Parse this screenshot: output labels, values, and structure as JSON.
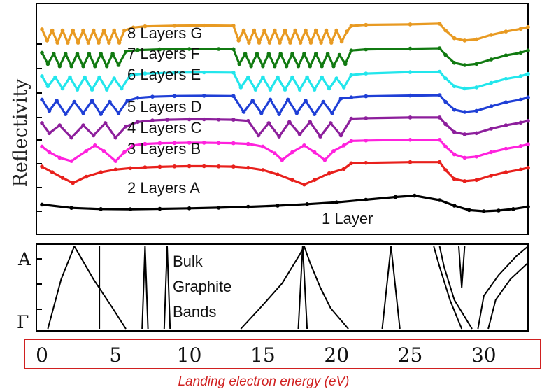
{
  "chart_data": [
    {
      "type": "line",
      "ylabel": "Reflectivity",
      "xlim": [
        0,
        33
      ],
      "x_ticks": [
        0,
        5,
        10,
        15,
        20,
        25,
        30
      ],
      "x_tick_labels": [
        "0",
        "5",
        "10",
        "15",
        "20",
        "25",
        "30"
      ],
      "series": [
        {
          "name": "1 Layer",
          "color": "#000000",
          "offset": 0,
          "x": [
            0,
            2,
            4,
            6,
            8,
            10,
            12,
            14,
            16,
            18,
            20,
            22,
            24,
            25.3,
            27,
            28,
            29,
            30,
            31,
            32,
            33
          ],
          "y": [
            0.3,
            0.15,
            0.1,
            0.09,
            0.11,
            0.13,
            0.16,
            0.2,
            0.25,
            0.32,
            0.4,
            0.52,
            0.64,
            0.7,
            0.5,
            0.25,
            0.05,
            0.0,
            0.03,
            0.1,
            0.2
          ]
        },
        {
          "name": "2 Layers A",
          "color": "#e8201c",
          "offset": 1,
          "x": [
            0,
            0.7,
            1.4,
            2.1,
            3,
            4,
            5,
            6,
            7,
            8,
            9,
            10,
            11,
            12,
            13,
            14,
            15,
            16,
            17,
            17.8,
            18.5,
            19.5,
            20.5,
            21,
            22,
            25,
            27,
            27.4,
            28,
            28.7,
            29.5,
            30.5,
            31.5,
            32.5,
            33
          ],
          "y": [
            0.95,
            0.7,
            0.45,
            0.22,
            0.5,
            0.7,
            0.82,
            0.88,
            0.92,
            0.94,
            0.96,
            0.97,
            0.97,
            0.96,
            0.95,
            0.9,
            0.8,
            0.6,
            0.35,
            0.15,
            0.35,
            0.65,
            0.85,
            1.1,
            1.12,
            1.15,
            1.15,
            0.8,
            0.4,
            0.3,
            0.35,
            0.55,
            0.7,
            0.82,
            0.9
          ]
        },
        {
          "name": "3 Layers B",
          "color": "#ff22dd",
          "offset": 2,
          "x": [
            0,
            0.5,
            1.2,
            2,
            3,
            3.6,
            4.2,
            5,
            5.6,
            6.2,
            7,
            8,
            9,
            10,
            11,
            12,
            13,
            14,
            15,
            15.8,
            16.3,
            17,
            17.8,
            18.5,
            19.2,
            19.8,
            20.5,
            21,
            22,
            25,
            27,
            27.4,
            28,
            28.7,
            29.5,
            30.5,
            31.5,
            32.5,
            33
          ],
          "y": [
            0.8,
            0.55,
            0.3,
            0.15,
            0.6,
            0.85,
            0.6,
            0.15,
            0.55,
            0.85,
            0.92,
            0.95,
            0.96,
            0.97,
            0.97,
            0.96,
            0.95,
            0.92,
            0.8,
            0.5,
            0.2,
            0.55,
            0.85,
            0.55,
            0.2,
            0.6,
            0.85,
            1.05,
            1.07,
            1.1,
            1.1,
            0.8,
            0.45,
            0.3,
            0.35,
            0.55,
            0.7,
            0.82,
            0.9
          ]
        },
        {
          "name": "4 Layers C",
          "color": "#8d1f9c",
          "offset": 3,
          "x": [
            0,
            0.5,
            1.2,
            2,
            2.8,
            3.5,
            4.3,
            5,
            5.7,
            6.5,
            7.5,
            8.5,
            10,
            11,
            12,
            13,
            14,
            14.7,
            15.4,
            16.1,
            16.8,
            17.5,
            18.2,
            18.9,
            19.6,
            20.3,
            21,
            22,
            25,
            27,
            27.4,
            28,
            28.7,
            29.5,
            30.5,
            31.5,
            32.5,
            33
          ],
          "y": [
            0.8,
            0.35,
            0.7,
            0.15,
            0.7,
            0.25,
            0.8,
            0.15,
            0.65,
            0.85,
            0.92,
            0.95,
            0.97,
            0.97,
            0.96,
            0.95,
            0.9,
            0.25,
            0.8,
            0.2,
            0.85,
            0.3,
            0.85,
            0.2,
            0.8,
            0.25,
            1.0,
            1.02,
            1.05,
            1.05,
            0.75,
            0.4,
            0.3,
            0.35,
            0.55,
            0.7,
            0.82,
            0.9
          ]
        },
        {
          "name": "5 Layers D",
          "color": "#1f3fd6",
          "offset": 4,
          "x": [
            0,
            0.5,
            1,
            1.6,
            2.2,
            2.8,
            3.4,
            4,
            4.6,
            5.2,
            5.8,
            6.5,
            7.5,
            9,
            11,
            13,
            13.7,
            14.3,
            14.9,
            15.5,
            16.1,
            16.7,
            17.3,
            17.9,
            18.5,
            19.1,
            19.7,
            20.3,
            21,
            22,
            25,
            27,
            27.4,
            28,
            28.7,
            29.5,
            30.5,
            31.5,
            32.5,
            33
          ],
          "y": [
            0.8,
            0.3,
            0.75,
            0.15,
            0.7,
            0.2,
            0.75,
            0.15,
            0.7,
            0.2,
            0.75,
            0.88,
            0.93,
            0.96,
            0.97,
            0.96,
            0.25,
            0.75,
            0.2,
            0.8,
            0.15,
            0.8,
            0.2,
            0.75,
            0.15,
            0.7,
            0.2,
            0.85,
            0.9,
            0.95,
            0.98,
            1.0,
            0.7,
            0.35,
            0.25,
            0.3,
            0.5,
            0.68,
            0.8,
            0.9
          ]
        },
        {
          "name": "6 Layers E",
          "color": "#22e6ec",
          "offset": 5,
          "x": [
            0,
            0.4,
            0.9,
            1.4,
            1.9,
            2.4,
            2.9,
            3.4,
            3.9,
            4.4,
            4.9,
            5.4,
            6,
            7,
            9,
            11,
            13,
            13.5,
            14,
            14.5,
            15,
            15.5,
            16,
            16.5,
            17,
            17.5,
            18,
            18.5,
            19,
            19.5,
            20,
            20.5,
            21,
            22,
            25,
            27,
            27.4,
            28,
            28.7,
            29.5,
            30.5,
            31.5,
            32.5,
            33
          ],
          "y": [
            0.8,
            0.35,
            0.75,
            0.25,
            0.75,
            0.2,
            0.75,
            0.2,
            0.75,
            0.2,
            0.7,
            0.25,
            0.85,
            0.92,
            0.96,
            0.97,
            0.96,
            0.3,
            0.75,
            0.2,
            0.75,
            0.2,
            0.75,
            0.2,
            0.75,
            0.2,
            0.75,
            0.2,
            0.75,
            0.25,
            0.7,
            0.3,
            0.85,
            0.92,
            0.98,
            1.0,
            0.7,
            0.35,
            0.25,
            0.3,
            0.5,
            0.68,
            0.8,
            0.9
          ]
        },
        {
          "name": "7 Layers F",
          "color": "#117a11",
          "offset": 6,
          "x": [
            0,
            0.4,
            0.8,
            1.2,
            1.6,
            2,
            2.4,
            2.8,
            3.2,
            3.6,
            4,
            4.4,
            4.8,
            5.2,
            5.7,
            6.5,
            8,
            10,
            12,
            13,
            13.4,
            13.8,
            14.2,
            14.6,
            15,
            15.4,
            15.8,
            16.2,
            16.6,
            17,
            17.4,
            17.8,
            18.2,
            18.6,
            19,
            19.4,
            19.8,
            20.2,
            20.6,
            21,
            22,
            25,
            27,
            27.4,
            28,
            28.7,
            29.5,
            30.5,
            31.5,
            32.5,
            33
          ],
          "y": [
            0.8,
            0.3,
            0.75,
            0.2,
            0.75,
            0.2,
            0.75,
            0.2,
            0.75,
            0.2,
            0.75,
            0.2,
            0.75,
            0.25,
            0.85,
            0.92,
            0.95,
            0.97,
            0.97,
            0.96,
            0.3,
            0.75,
            0.2,
            0.75,
            0.2,
            0.75,
            0.2,
            0.75,
            0.2,
            0.75,
            0.2,
            0.75,
            0.2,
            0.75,
            0.2,
            0.75,
            0.2,
            0.7,
            0.3,
            0.9,
            0.95,
            0.98,
            1.0,
            0.7,
            0.35,
            0.25,
            0.3,
            0.5,
            0.68,
            0.8,
            0.9
          ]
        },
        {
          "name": "8 Layers G",
          "color": "#e89a22",
          "offset": 7,
          "x": [
            0,
            0.35,
            0.7,
            1.05,
            1.4,
            1.75,
            2.1,
            2.45,
            2.8,
            3.15,
            3.5,
            3.85,
            4.2,
            4.55,
            4.9,
            5.25,
            5.6,
            6.2,
            7,
            9,
            11,
            13,
            13.35,
            13.7,
            14.05,
            14.4,
            14.75,
            15.1,
            15.45,
            15.8,
            16.15,
            16.5,
            16.85,
            17.2,
            17.55,
            17.9,
            18.25,
            18.6,
            18.95,
            19.3,
            19.65,
            20,
            20.35,
            20.7,
            21,
            22,
            25,
            27,
            27.4,
            28,
            28.7,
            29.5,
            30.5,
            31.5,
            32.5,
            33
          ],
          "y": [
            0.8,
            0.3,
            0.75,
            0.2,
            0.75,
            0.2,
            0.75,
            0.2,
            0.75,
            0.2,
            0.75,
            0.2,
            0.75,
            0.2,
            0.75,
            0.2,
            0.75,
            0.88,
            0.93,
            0.96,
            0.97,
            0.96,
            0.3,
            0.75,
            0.2,
            0.75,
            0.2,
            0.75,
            0.2,
            0.75,
            0.2,
            0.75,
            0.2,
            0.75,
            0.2,
            0.75,
            0.2,
            0.75,
            0.2,
            0.75,
            0.2,
            0.75,
            0.25,
            0.7,
            0.95,
            1.0,
            1.02,
            1.05,
            0.75,
            0.4,
            0.3,
            0.35,
            0.55,
            0.7,
            0.82,
            0.9
          ]
        }
      ]
    },
    {
      "type": "line",
      "title": "Bulk Graphite Bands",
      "title_lines": [
        "Bulk",
        "Graphite",
        "Bands"
      ],
      "y_tick_labels": [
        "A",
        "Γ"
      ],
      "xlim": [
        0,
        33
      ],
      "ylim": [
        0,
        1
      ],
      "series": [
        {
          "x": [
            0.4,
            1.3,
            2.2
          ],
          "y": [
            0,
            0.6,
            1
          ]
        },
        {
          "x": [
            2.2,
            3.5,
            4.8,
            5.7
          ],
          "y": [
            1,
            0.6,
            0.25,
            0
          ]
        },
        {
          "x": [
            3.9,
            3.9
          ],
          "y": [
            0,
            1
          ]
        },
        {
          "x": [
            6.8,
            7.0,
            7.2
          ],
          "y": [
            0,
            1,
            0
          ]
        },
        {
          "x": [
            8.3,
            8.5,
            8.7
          ],
          "y": [
            0,
            1,
            0
          ]
        },
        {
          "x": [
            13.5,
            14.8,
            16.3,
            17.5,
            17.8
          ],
          "y": [
            0,
            0.25,
            0.55,
            0.9,
            1
          ]
        },
        {
          "x": [
            17.8,
            18.2,
            18.9,
            19.6,
            20.8
          ],
          "y": [
            1,
            0.8,
            0.5,
            0.25,
            0
          ]
        },
        {
          "x": [
            17.4,
            17.7,
            18.0
          ],
          "y": [
            0,
            1,
            0
          ]
        },
        {
          "x": [
            23.1,
            23.7,
            24.3
          ],
          "y": [
            0,
            1,
            0
          ]
        },
        {
          "x": [
            26.6,
            27.0,
            27.7,
            28.5
          ],
          "y": [
            1,
            0.75,
            0.35,
            0
          ]
        },
        {
          "x": [
            27.0,
            27.3,
            28.0,
            29.2
          ],
          "y": [
            1,
            0.75,
            0.35,
            0
          ]
        },
        {
          "x": [
            28.3,
            28.5,
            28.7
          ],
          "y": [
            1,
            0.5,
            1
          ]
        },
        {
          "x": [
            29.6,
            30.0,
            31.0,
            32.2,
            33
          ],
          "y": [
            0,
            0.4,
            0.65,
            0.88,
            1
          ]
        },
        {
          "x": [
            30.3,
            30.8,
            31.8,
            33
          ],
          "y": [
            0,
            0.35,
            0.6,
            0.8
          ]
        }
      ]
    }
  ],
  "labels": {
    "s8": "8 Layers G",
    "s7": "7 Layers F",
    "s6": "6 Layers E",
    "s5": "5 Layers D",
    "s4": "4 Layers C",
    "s3": "3 Layers B",
    "s2": "2 Layers A",
    "s1": "1 Layer"
  },
  "xlabel": "Landing  electron energy (eV)",
  "colors": {
    "frame": "#000000",
    "highlight_box": "#d02020",
    "xlabel": "#d02020"
  }
}
